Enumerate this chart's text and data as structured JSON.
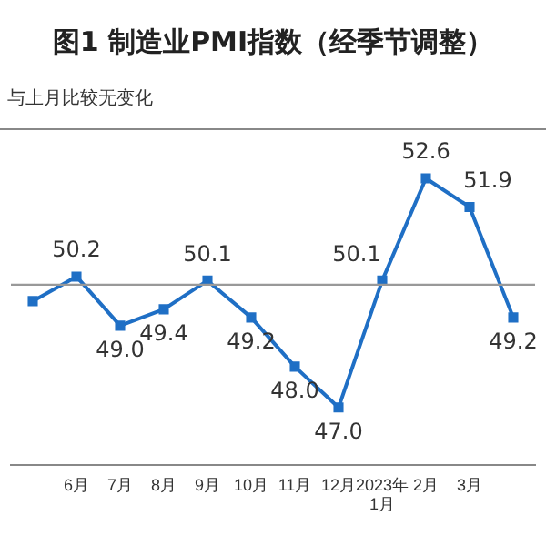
{
  "chart_data": {
    "type": "line",
    "title": "图1  制造业PMI指数（经季节调整）",
    "annotations": [
      "与上月比较无变化"
    ],
    "categories": [
      null,
      "6月",
      "7月",
      "8月",
      "9月",
      "10月",
      "11月",
      "12月",
      "2023年\n1月",
      "2月",
      "3月",
      null
    ],
    "series": [
      {
        "color": "#1f6fc5",
        "values": [
          49.6,
          50.2,
          49.0,
          49.4,
          50.1,
          49.2,
          48.0,
          47.0,
          50.1,
          52.6,
          51.9,
          49.2
        ],
        "value_labels": [
          null,
          "50.2",
          "49.0",
          "49.4",
          "50.1",
          "49.2",
          "48.0",
          "47.0",
          "50.1",
          "52.6",
          "51.9",
          "49.2"
        ]
      }
    ],
    "ylim": [
      45.6,
      53.8
    ],
    "tick_labels": "x",
    "grid": false,
    "legend": false,
    "marker": "square",
    "line_style": "solid",
    "ref_lines": [
      {
        "axis": "y",
        "value": 50,
        "color": "#999999"
      }
    ]
  }
}
